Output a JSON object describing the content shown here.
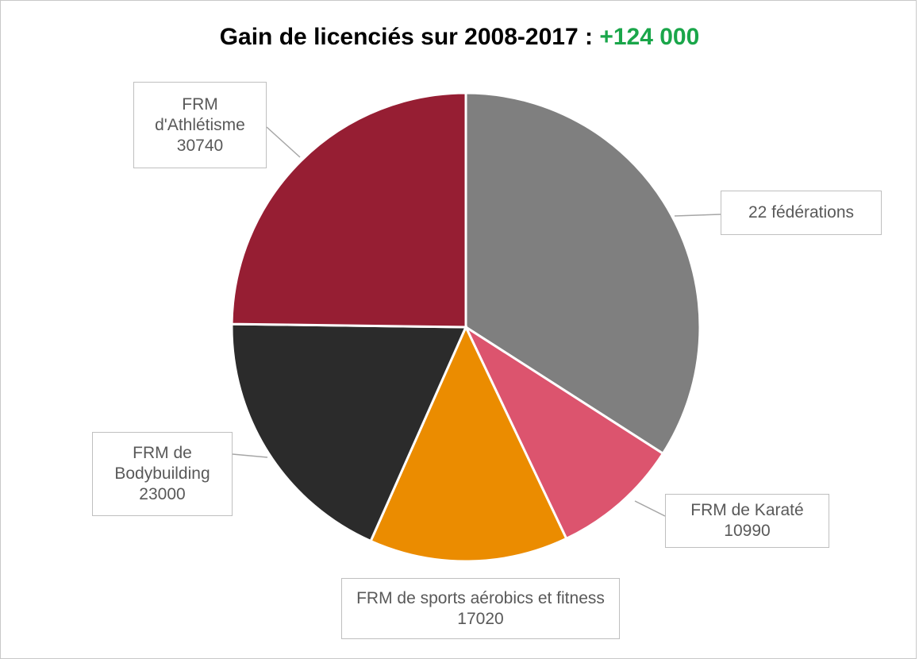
{
  "chart_data": {
    "type": "pie",
    "title": "Gain de licenciés sur 2008-2017 :",
    "title_highlight": "+124 000",
    "categories": [
      "22 fédérations",
      "FRM de Karaté",
      "FRM de sports aérobics et fitness",
      "FRM de Bodybuilding",
      "FRM d'Athlétisme"
    ],
    "values": [
      42250,
      10990,
      17020,
      23000,
      30740
    ],
    "value_labels": [
      null,
      "10990",
      "17020",
      "23000",
      "30740"
    ],
    "colors": [
      "#7f7f7f",
      "#dc546e",
      "#eb8c00",
      "#2b2b2b",
      "#961e33"
    ],
    "highlight_color": "#1aa64a"
  }
}
